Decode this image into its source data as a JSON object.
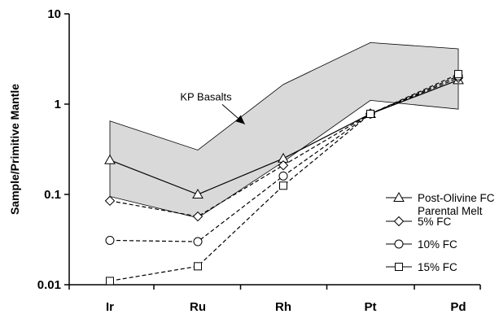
{
  "chart_data": {
    "type": "line",
    "title": "",
    "xlabel": "",
    "ylabel": "Sample/Primitive Mantle",
    "yscale": "log",
    "ylim": [
      0.01,
      10
    ],
    "yticks": [
      {
        "value": 0.01,
        "label": "0.01"
      },
      {
        "value": 0.1,
        "label": "0.1"
      },
      {
        "value": 1,
        "label": "1"
      },
      {
        "value": 10,
        "label": "10"
      }
    ],
    "categories": [
      "Ir",
      "Ru",
      "Rh",
      "Pt",
      "Pd"
    ],
    "band": {
      "upper": [
        0.65,
        0.31,
        1.65,
        4.8,
        4.1
      ],
      "lower": [
        0.095,
        0.055,
        0.23,
        1.1,
        0.88
      ],
      "color": "#d9d9d9"
    },
    "annotation": {
      "text": "KP Basalts",
      "x": "Ru",
      "y": 1.1,
      "arrow_to_x": 1.55,
      "arrow_to_y": 0.6
    },
    "series": [
      {
        "name": "Post-Olivine FC Parental Melt",
        "marker": "triangle",
        "linestyle": "solid",
        "values": [
          0.24,
          0.1,
          0.25,
          0.78,
          1.85
        ]
      },
      {
        "name": "5% FC",
        "marker": "diamond",
        "linestyle": "dashed",
        "values": [
          0.085,
          0.057,
          0.21,
          0.78,
          1.95
        ]
      },
      {
        "name": "10% FC",
        "marker": "circle",
        "linestyle": "dashed",
        "values": [
          0.031,
          0.03,
          0.16,
          0.78,
          2.05
        ]
      },
      {
        "name": "15% FC",
        "marker": "square",
        "linestyle": "dashed",
        "values": [
          0.011,
          0.016,
          0.125,
          0.78,
          2.15
        ]
      }
    ],
    "legend": {
      "placement": "lower-right",
      "entries": [
        {
          "lines": [
            "Post-Olivine FC",
            "Parental Melt"
          ],
          "marker": "triangle"
        },
        {
          "lines": [
            "5% FC"
          ],
          "marker": "diamond"
        },
        {
          "lines": [
            "10% FC"
          ],
          "marker": "circle"
        },
        {
          "lines": [
            "15% FC"
          ],
          "marker": "square"
        }
      ]
    }
  }
}
